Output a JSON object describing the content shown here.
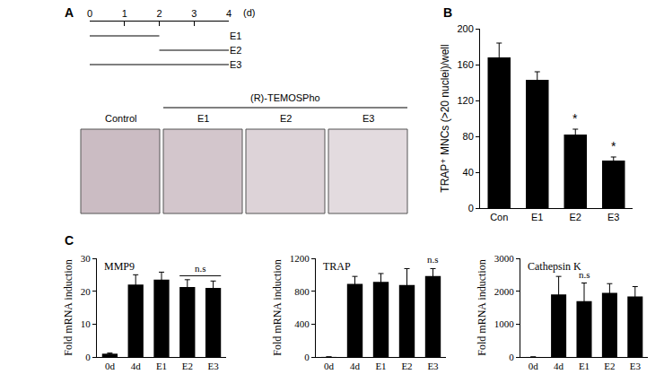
{
  "panel_labels": [
    "A",
    "B",
    "C"
  ],
  "image_panel": {
    "treatment": "(R)-TEMOSPho",
    "labels": [
      "Control",
      "E1",
      "E2",
      "E3"
    ]
  },
  "chart_data": [
    {
      "type": "timeline",
      "xlim": [
        0,
        4
      ],
      "xticks": [
        0,
        1,
        2,
        3,
        4
      ],
      "x_unit": "(d)",
      "color": "#000000",
      "series": [
        {
          "name": "E1",
          "start": 0,
          "end": 2
        },
        {
          "name": "E2",
          "start": 2,
          "end": 4
        },
        {
          "name": "E3",
          "start": 0,
          "end": 4
        }
      ]
    },
    {
      "type": "bar",
      "y_label": "TRAP⁺ MNCs (>20 nuclei)/well",
      "categories": [
        "Con",
        "E1",
        "E2",
        "E3"
      ],
      "values": [
        168,
        143,
        82,
        53
      ],
      "errors": [
        16,
        9,
        6,
        4
      ],
      "color": "#000000",
      "ylim": [
        0,
        200
      ],
      "yticks": [
        0,
        40,
        80,
        120,
        160,
        200
      ],
      "grid": false,
      "annotations": [
        {
          "text": "*",
          "categories": [
            "E2"
          ]
        },
        {
          "text": "*",
          "categories": [
            "E3"
          ]
        }
      ]
    },
    {
      "type": "bar",
      "title": "MMP9",
      "y_label": "Fold mRNA induction",
      "categories": [
        "0d",
        "4d",
        "E1",
        "E2",
        "E3"
      ],
      "values": [
        1,
        22,
        23.5,
        21.3,
        21
      ],
      "errors": [
        0.2,
        3,
        2.3,
        2.2,
        2.1
      ],
      "color": "#000000",
      "ylim": [
        0,
        30
      ],
      "yticks": [
        0,
        10,
        20,
        30
      ],
      "grid": false,
      "annotations": [
        {
          "text": "n.s",
          "categories": [
            "E2",
            "E3"
          ]
        }
      ]
    },
    {
      "type": "bar",
      "title": "TRAP",
      "y_label": "Fold mRNA induction",
      "categories": [
        "0d",
        "4d",
        "E1",
        "E2",
        "E3"
      ],
      "values": [
        1,
        890,
        915,
        875,
        985
      ],
      "errors": [
        0,
        90,
        100,
        200,
        90
      ],
      "color": "#000000",
      "ylim": [
        0,
        1200
      ],
      "yticks": [
        0,
        400,
        800,
        1200
      ],
      "grid": false,
      "annotations": [
        {
          "text": "n.s",
          "categories": [
            "E3"
          ]
        }
      ]
    },
    {
      "type": "bar",
      "title": "Cathepsin K",
      "y_label": "Fold mRNA induction",
      "categories": [
        "0d",
        "4d",
        "E1",
        "E2",
        "E3"
      ],
      "values": [
        1,
        1900,
        1700,
        1950,
        1840
      ],
      "errors": [
        0,
        550,
        550,
        280,
        300
      ],
      "color": "#000000",
      "ylim": [
        0,
        3000
      ],
      "yticks": [
        0,
        1000,
        2000,
        3000
      ],
      "grid": false,
      "annotations": [
        {
          "text": "n.s",
          "categories": [
            "E1"
          ]
        }
      ]
    }
  ]
}
